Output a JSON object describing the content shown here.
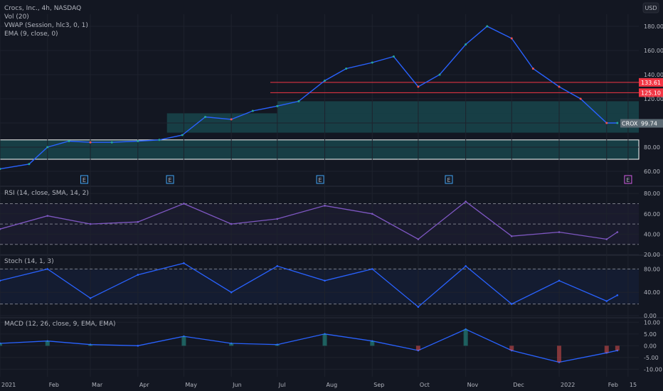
{
  "header": {
    "symbol_line": "Crocs, Inc., 4h, NASDAQ",
    "indicators": [
      "Vol (20)",
      "VWAP (Session, hlc3, 0, 1)",
      "EMA (9, close, 0)"
    ],
    "currency": "USD"
  },
  "chart_data": [
    {
      "type": "line",
      "panel": "price",
      "x_labels": [
        "2021",
        "Feb",
        "Mar",
        "Apr",
        "May",
        "Jun",
        "Jul",
        "Aug",
        "Sep",
        "Oct",
        "Nov",
        "Dec",
        "2022",
        "Feb",
        "15"
      ],
      "y_ticks": [
        60,
        80,
        100,
        120,
        140,
        160,
        180
      ],
      "ylim": [
        50,
        190
      ],
      "x": [
        "2021-01-01",
        "2021-01-20",
        "2021-02-01",
        "2021-02-15",
        "2021-03-01",
        "2021-03-15",
        "2021-04-01",
        "2021-04-15",
        "2021-04-30",
        "2021-05-15",
        "2021-06-01",
        "2021-06-15",
        "2021-07-01",
        "2021-07-15",
        "2021-08-01",
        "2021-08-15",
        "2021-09-01",
        "2021-09-15",
        "2021-10-01",
        "2021-10-15",
        "2021-11-01",
        "2021-11-15",
        "2021-12-01",
        "2021-12-15",
        "2022-01-01",
        "2022-01-15",
        "2022-02-01",
        "2022-02-08"
      ],
      "series": [
        {
          "name": "",
          "values": [
            62,
            66,
            80,
            85,
            84,
            84,
            85,
            86,
            90,
            105,
            103,
            110,
            114,
            118,
            135,
            145,
            150,
            155,
            130,
            140,
            165,
            180,
            170,
            145,
            130,
            120,
            100,
            100
          ]
        }
      ],
      "price_tags": [
        {
          "value": "133.61",
          "level": 133.6,
          "color": "#f23645"
        },
        {
          "value": "125.10",
          "level": 125.1,
          "color": "#f23645"
        },
        {
          "value": "CROX",
          "value2": "99.74",
          "level": 99.7,
          "color": "#5d6b75"
        }
      ],
      "horizontal_levels": [
        133.6,
        125.1
      ],
      "zones": [
        {
          "from": 70,
          "to": 86,
          "start": "2021-01-01"
        },
        {
          "from": 92,
          "to": 108,
          "start": "2021-04-20"
        },
        {
          "from": 108,
          "to": 118,
          "start": "2021-07-01"
        }
      ],
      "earnings_markers": [
        {
          "label": "E"
        },
        {
          "label": "E"
        },
        {
          "label": "E"
        },
        {
          "label": "E"
        },
        {
          "label": "E"
        }
      ]
    },
    {
      "type": "line",
      "panel": "rsi",
      "title": "RSI (14, close, SMA, 14, 2)",
      "y_ticks": [
        20,
        40,
        60,
        80
      ],
      "ylim": [
        20,
        85
      ],
      "bands": [
        70,
        50,
        30
      ],
      "x": [
        "2021-01-01",
        "2021-02-01",
        "2021-03-01",
        "2021-04-01",
        "2021-05-01",
        "2021-06-01",
        "2021-07-01",
        "2021-08-01",
        "2021-09-01",
        "2021-10-01",
        "2021-11-01",
        "2021-12-01",
        "2022-01-01",
        "2022-02-01",
        "2022-02-08"
      ],
      "series": [
        {
          "name": "",
          "values": [
            45,
            58,
            50,
            52,
            70,
            50,
            55,
            68,
            60,
            35,
            72,
            38,
            42,
            35,
            42
          ]
        }
      ]
    },
    {
      "type": "line",
      "panel": "stoch",
      "title": "Stoch (14, 1, 3)",
      "y_ticks": [
        0,
        40,
        80
      ],
      "ylim": [
        0,
        100
      ],
      "bands": [
        80,
        20
      ],
      "x": [
        "2021-01-01",
        "2021-02-01",
        "2021-03-01",
        "2021-04-01",
        "2021-05-01",
        "2021-06-01",
        "2021-07-01",
        "2021-08-01",
        "2021-09-01",
        "2021-10-01",
        "2021-11-01",
        "2021-12-01",
        "2022-01-01",
        "2022-02-01",
        "2022-02-08"
      ],
      "series": [
        {
          "name": "",
          "values": [
            60,
            80,
            30,
            70,
            90,
            40,
            85,
            60,
            80,
            15,
            85,
            20,
            60,
            25,
            35
          ]
        }
      ]
    },
    {
      "type": "line",
      "panel": "macd",
      "title": "MACD (12, 26, close, 9, EMA, EMA)",
      "y_ticks": [
        -10,
        -5,
        0,
        5,
        10
      ],
      "ylim": [
        -12,
        11
      ],
      "x": [
        "2021-01-01",
        "2021-02-01",
        "2021-03-01",
        "2021-04-01",
        "2021-05-01",
        "2021-06-01",
        "2021-07-01",
        "2021-08-01",
        "2021-09-01",
        "2021-10-01",
        "2021-11-01",
        "2021-12-01",
        "2022-01-01",
        "2022-02-01",
        "2022-02-08"
      ],
      "series": [
        {
          "name": "",
          "values": [
            1,
            2,
            0.5,
            0,
            4,
            1,
            0.5,
            5,
            2,
            -2,
            7,
            -2,
            -7,
            -3,
            -2
          ]
        }
      ]
    }
  ],
  "colors": {
    "background": "#131722",
    "price_line": "#2962ff",
    "candle_up": "#26a69a",
    "candle_down": "#ef5350",
    "level_line": "#f23645",
    "zone_fill": "#1b5e63",
    "rsi_line": "#7e57c2",
    "macd_line": "#2962ff",
    "signal_line": "#ff6d00"
  }
}
